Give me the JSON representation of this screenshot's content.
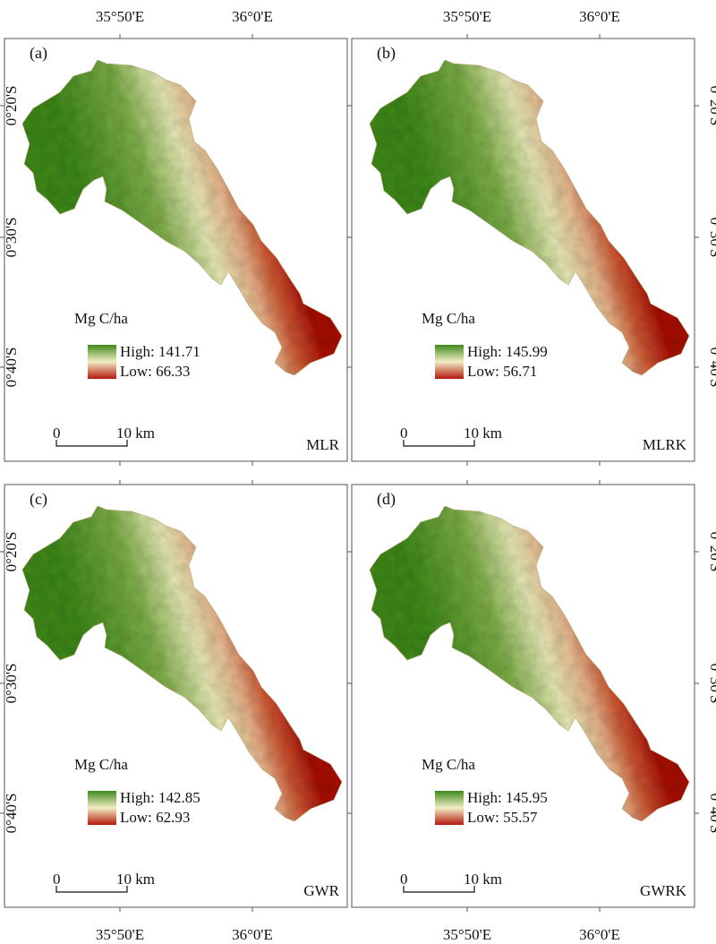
{
  "coords": {
    "lon_left": "35°50'E",
    "lon_right": "36°0'E",
    "lat_top": "0°20'S",
    "lat_mid": "0°30'S",
    "lat_bottom": "0°40'S"
  },
  "panels": [
    {
      "letter": "(a)",
      "method": "MLR",
      "legend_title": "Mg C/ha",
      "high_label": "High:",
      "high_value": "141.71",
      "low_label": "Low:",
      "low_value": "66.33",
      "scale_zero": "0",
      "scale_label": "10 km",
      "colors": {
        "high": "#3f8a1c",
        "mid": "#f2edc4",
        "low": "#b3170d"
      }
    },
    {
      "letter": "(b)",
      "method": "MLRK",
      "legend_title": "Mg C/ha",
      "high_label": "High:",
      "high_value": "145.99",
      "low_label": "Low:",
      "low_value": "56.71",
      "scale_zero": "0",
      "scale_label": "10 km",
      "colors": {
        "high": "#3f8a1c",
        "mid": "#f2edc4",
        "low": "#b3170d"
      }
    },
    {
      "letter": "(c)",
      "method": "GWR",
      "legend_title": "Mg C/ha",
      "high_label": "High:",
      "high_value": "142.85",
      "low_label": "Low:",
      "low_value": "62.93",
      "scale_zero": "0",
      "scale_label": "10 km",
      "colors": {
        "high": "#3f8a1c",
        "mid": "#f2edc4",
        "low": "#b3170d"
      }
    },
    {
      "letter": "(d)",
      "method": "GWRK",
      "legend_title": "Mg C/ha",
      "high_label": "High:",
      "high_value": "145.95",
      "low_label": "Low:",
      "low_value": "55.57",
      "scale_zero": "0",
      "scale_label": "10 km",
      "colors": {
        "high": "#3f8a1c",
        "mid": "#f2edc4",
        "low": "#b3170d"
      }
    }
  ]
}
